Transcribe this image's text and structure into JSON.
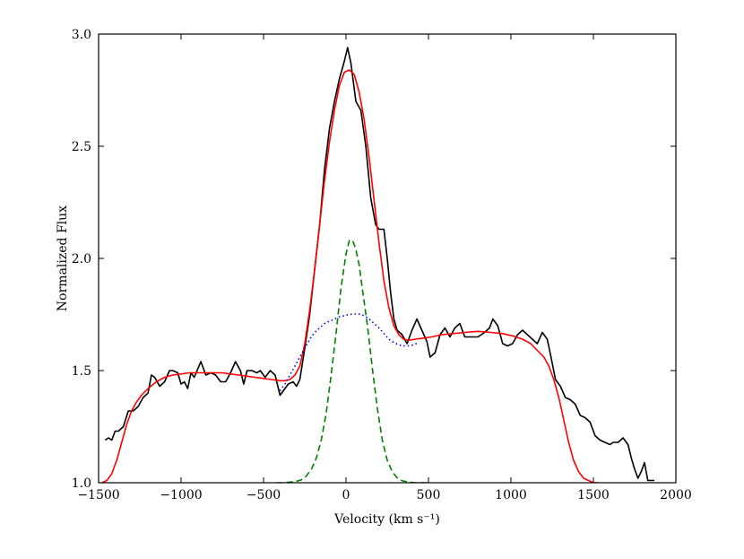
{
  "chart_data": {
    "type": "line",
    "xlabel": "Velocity (km s⁻¹)",
    "ylabel": "Normalized Flux",
    "xlim": [
      -1500,
      2000
    ],
    "ylim": [
      1.0,
      3.0
    ],
    "x_ticks": [
      -1500,
      -1000,
      -500,
      0,
      500,
      1000,
      1500,
      2000
    ],
    "x_tick_labels": [
      "−1500",
      "−1000",
      "−500",
      "0",
      "500",
      "1000",
      "1500",
      "2000"
    ],
    "y_ticks": [
      1.0,
      1.5,
      2.0,
      2.5,
      3.0
    ],
    "y_tick_labels": [
      "1.0",
      "1.5",
      "2.0",
      "2.5",
      "3.0"
    ],
    "grid": false,
    "series": [
      {
        "style": "solid",
        "color": "#000000",
        "points": [
          [
            -1460,
            1.19
          ],
          [
            -1440,
            1.2
          ],
          [
            -1420,
            1.19
          ],
          [
            -1400,
            1.23
          ],
          [
            -1380,
            1.23
          ],
          [
            -1350,
            1.25
          ],
          [
            -1320,
            1.32
          ],
          [
            -1290,
            1.32
          ],
          [
            -1260,
            1.34
          ],
          [
            -1230,
            1.38
          ],
          [
            -1200,
            1.4
          ],
          [
            -1180,
            1.48
          ],
          [
            -1160,
            1.47
          ],
          [
            -1130,
            1.43
          ],
          [
            -1100,
            1.45
          ],
          [
            -1070,
            1.5
          ],
          [
            -1050,
            1.5
          ],
          [
            -1020,
            1.49
          ],
          [
            -1000,
            1.44
          ],
          [
            -980,
            1.45
          ],
          [
            -960,
            1.42
          ],
          [
            -940,
            1.49
          ],
          [
            -920,
            1.47
          ],
          [
            -880,
            1.54
          ],
          [
            -850,
            1.48
          ],
          [
            -820,
            1.49
          ],
          [
            -790,
            1.48
          ],
          [
            -760,
            1.45
          ],
          [
            -730,
            1.45
          ],
          [
            -700,
            1.49
          ],
          [
            -670,
            1.54
          ],
          [
            -640,
            1.5
          ],
          [
            -620,
            1.44
          ],
          [
            -600,
            1.5
          ],
          [
            -570,
            1.5
          ],
          [
            -540,
            1.49
          ],
          [
            -520,
            1.5
          ],
          [
            -490,
            1.47
          ],
          [
            -460,
            1.5
          ],
          [
            -430,
            1.48
          ],
          [
            -400,
            1.39
          ],
          [
            -380,
            1.41
          ],
          [
            -350,
            1.44
          ],
          [
            -320,
            1.45
          ],
          [
            -300,
            1.43
          ],
          [
            -280,
            1.46
          ],
          [
            -250,
            1.6
          ],
          [
            -220,
            1.75
          ],
          [
            -190,
            1.95
          ],
          [
            -160,
            2.15
          ],
          [
            -130,
            2.4
          ],
          [
            -100,
            2.58
          ],
          [
            -70,
            2.7
          ],
          [
            -40,
            2.8
          ],
          [
            -10,
            2.88
          ],
          [
            10,
            2.94
          ],
          [
            30,
            2.87
          ],
          [
            60,
            2.7
          ],
          [
            90,
            2.66
          ],
          [
            120,
            2.5
          ],
          [
            150,
            2.27
          ],
          [
            180,
            2.15
          ],
          [
            200,
            2.13
          ],
          [
            230,
            2.13
          ],
          [
            250,
            2.0
          ],
          [
            270,
            1.85
          ],
          [
            290,
            1.73
          ],
          [
            310,
            1.68
          ],
          [
            340,
            1.66
          ],
          [
            370,
            1.62
          ],
          [
            400,
            1.68
          ],
          [
            430,
            1.73
          ],
          [
            460,
            1.68
          ],
          [
            490,
            1.63
          ],
          [
            510,
            1.56
          ],
          [
            540,
            1.58
          ],
          [
            570,
            1.66
          ],
          [
            600,
            1.69
          ],
          [
            630,
            1.65
          ],
          [
            660,
            1.69
          ],
          [
            690,
            1.71
          ],
          [
            720,
            1.65
          ],
          [
            760,
            1.65
          ],
          [
            800,
            1.65
          ],
          [
            840,
            1.67
          ],
          [
            870,
            1.69
          ],
          [
            890,
            1.73
          ],
          [
            920,
            1.7
          ],
          [
            950,
            1.62
          ],
          [
            980,
            1.61
          ],
          [
            1010,
            1.62
          ],
          [
            1040,
            1.66
          ],
          [
            1070,
            1.68
          ],
          [
            1100,
            1.66
          ],
          [
            1130,
            1.64
          ],
          [
            1160,
            1.62
          ],
          [
            1190,
            1.67
          ],
          [
            1220,
            1.64
          ],
          [
            1240,
            1.57
          ],
          [
            1270,
            1.46
          ],
          [
            1300,
            1.43
          ],
          [
            1330,
            1.38
          ],
          [
            1360,
            1.37
          ],
          [
            1390,
            1.35
          ],
          [
            1420,
            1.3
          ],
          [
            1450,
            1.29
          ],
          [
            1480,
            1.27
          ],
          [
            1510,
            1.21
          ],
          [
            1540,
            1.19
          ],
          [
            1570,
            1.18
          ],
          [
            1600,
            1.17
          ],
          [
            1620,
            1.18
          ],
          [
            1650,
            1.18
          ],
          [
            1680,
            1.2
          ],
          [
            1710,
            1.17
          ],
          [
            1730,
            1.11
          ],
          [
            1750,
            1.06
          ],
          [
            1770,
            1.02
          ],
          [
            1790,
            1.05
          ],
          [
            1810,
            1.09
          ],
          [
            1830,
            1.01
          ],
          [
            1870,
            1.01
          ]
        ]
      },
      {
        "style": "solid",
        "color": "#ff0000",
        "points": [
          [
            -1480,
            1.0
          ],
          [
            -1450,
            1.01
          ],
          [
            -1420,
            1.04
          ],
          [
            -1390,
            1.1
          ],
          [
            -1360,
            1.18
          ],
          [
            -1330,
            1.26
          ],
          [
            -1300,
            1.32
          ],
          [
            -1270,
            1.36
          ],
          [
            -1240,
            1.39
          ],
          [
            -1200,
            1.42
          ],
          [
            -1150,
            1.45
          ],
          [
            -1100,
            1.47
          ],
          [
            -1050,
            1.48
          ],
          [
            -1000,
            1.485
          ],
          [
            -950,
            1.49
          ],
          [
            -900,
            1.49
          ],
          [
            -850,
            1.49
          ],
          [
            -800,
            1.49
          ],
          [
            -750,
            1.49
          ],
          [
            -700,
            1.485
          ],
          [
            -650,
            1.48
          ],
          [
            -600,
            1.475
          ],
          [
            -550,
            1.47
          ],
          [
            -500,
            1.465
          ],
          [
            -450,
            1.46
          ],
          [
            -400,
            1.455
          ],
          [
            -370,
            1.455
          ],
          [
            -340,
            1.46
          ],
          [
            -310,
            1.48
          ],
          [
            -280,
            1.52
          ],
          [
            -250,
            1.62
          ],
          [
            -220,
            1.77
          ],
          [
            -190,
            1.95
          ],
          [
            -160,
            2.15
          ],
          [
            -130,
            2.35
          ],
          [
            -100,
            2.52
          ],
          [
            -70,
            2.66
          ],
          [
            -40,
            2.77
          ],
          [
            -10,
            2.83
          ],
          [
            20,
            2.84
          ],
          [
            50,
            2.82
          ],
          [
            80,
            2.74
          ],
          [
            110,
            2.62
          ],
          [
            140,
            2.45
          ],
          [
            170,
            2.26
          ],
          [
            200,
            2.07
          ],
          [
            230,
            1.9
          ],
          [
            260,
            1.78
          ],
          [
            290,
            1.7
          ],
          [
            320,
            1.66
          ],
          [
            350,
            1.64
          ],
          [
            380,
            1.635
          ],
          [
            420,
            1.64
          ],
          [
            470,
            1.645
          ],
          [
            520,
            1.65
          ],
          [
            580,
            1.66
          ],
          [
            650,
            1.665
          ],
          [
            720,
            1.67
          ],
          [
            800,
            1.675
          ],
          [
            880,
            1.67
          ],
          [
            950,
            1.665
          ],
          [
            1010,
            1.655
          ],
          [
            1070,
            1.64
          ],
          [
            1120,
            1.62
          ],
          [
            1160,
            1.59
          ],
          [
            1200,
            1.56
          ],
          [
            1230,
            1.52
          ],
          [
            1260,
            1.46
          ],
          [
            1290,
            1.38
          ],
          [
            1320,
            1.28
          ],
          [
            1350,
            1.18
          ],
          [
            1380,
            1.1
          ],
          [
            1410,
            1.05
          ],
          [
            1440,
            1.02
          ],
          [
            1470,
            1.01
          ],
          [
            1500,
            1.0
          ],
          [
            1530,
            1.0
          ]
        ]
      },
      {
        "style": "dashed",
        "color": "#008000",
        "points": [
          [
            -420,
            1.0
          ],
          [
            -380,
            1.0
          ],
          [
            -340,
            1.003
          ],
          [
            -300,
            1.007
          ],
          [
            -270,
            1.013
          ],
          [
            -240,
            1.03
          ],
          [
            -210,
            1.06
          ],
          [
            -180,
            1.11
          ],
          [
            -150,
            1.19
          ],
          [
            -120,
            1.31
          ],
          [
            -90,
            1.48
          ],
          [
            -60,
            1.67
          ],
          [
            -30,
            1.87
          ],
          [
            0,
            2.02
          ],
          [
            20,
            2.08
          ],
          [
            40,
            2.08
          ],
          [
            60,
            2.04
          ],
          [
            80,
            1.97
          ],
          [
            100,
            1.86
          ],
          [
            130,
            1.7
          ],
          [
            160,
            1.51
          ],
          [
            190,
            1.33
          ],
          [
            220,
            1.19
          ],
          [
            250,
            1.1
          ],
          [
            280,
            1.05
          ],
          [
            310,
            1.022
          ],
          [
            340,
            1.009
          ],
          [
            380,
            1.003
          ],
          [
            420,
            1.0
          ],
          [
            460,
            1.0
          ],
          [
            500,
            1.0
          ]
        ]
      },
      {
        "style": "dotted",
        "color": "#0000ff",
        "points": [
          [
            -400,
            1.41
          ],
          [
            -370,
            1.44
          ],
          [
            -340,
            1.48
          ],
          [
            -310,
            1.52
          ],
          [
            -280,
            1.56
          ],
          [
            -250,
            1.6
          ],
          [
            -220,
            1.64
          ],
          [
            -190,
            1.67
          ],
          [
            -160,
            1.69
          ],
          [
            -130,
            1.71
          ],
          [
            -100,
            1.72
          ],
          [
            -70,
            1.73
          ],
          [
            -40,
            1.74
          ],
          [
            -10,
            1.745
          ],
          [
            20,
            1.75
          ],
          [
            50,
            1.752
          ],
          [
            80,
            1.752
          ],
          [
            110,
            1.745
          ],
          [
            140,
            1.73
          ],
          [
            170,
            1.71
          ],
          [
            200,
            1.69
          ],
          [
            230,
            1.665
          ],
          [
            260,
            1.64
          ],
          [
            290,
            1.625
          ],
          [
            320,
            1.615
          ],
          [
            350,
            1.61
          ],
          [
            380,
            1.61
          ],
          [
            410,
            1.615
          ],
          [
            440,
            1.625
          ]
        ]
      }
    ]
  }
}
